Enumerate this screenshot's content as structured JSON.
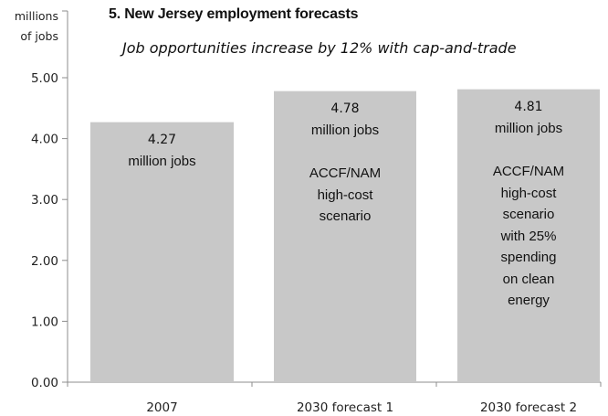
{
  "chart_data": {
    "type": "bar",
    "title": "5. New Jersey employment forecasts",
    "subtitle": "Job opportunities increase by 12% with cap-and-trade",
    "ylabel": [
      "millions",
      "of jobs"
    ],
    "ylim": [
      0,
      5
    ],
    "yticks": [
      "0.00",
      "1.00",
      "2.00",
      "3.00",
      "4.00",
      "5.00"
    ],
    "categories": [
      "2007",
      "2030 forecast 1",
      "2030 forecast 2"
    ],
    "values": [
      4.27,
      4.78,
      4.81
    ],
    "data_labels": [
      "4.27",
      "4.78",
      "4.81"
    ],
    "bar_notes": [
      [
        "million jobs"
      ],
      [
        "million jobs",
        "",
        "ACCF/NAM",
        "high-cost",
        "scenario"
      ],
      [
        "million jobs",
        "",
        "ACCF/NAM",
        "high-cost",
        "scenario",
        "with 25%",
        "spending",
        "on clean",
        "energy"
      ]
    ],
    "bar_color": "#c8c8c8",
    "grid": false,
    "legend": "none"
  }
}
